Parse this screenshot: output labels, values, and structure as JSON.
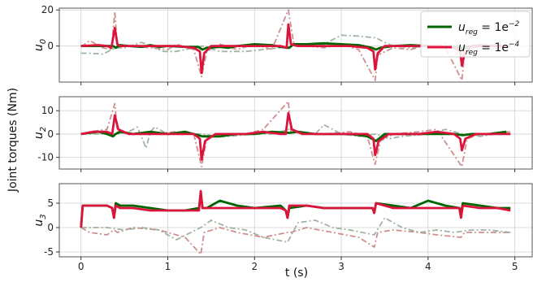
{
  "chart_data": {
    "type": "line",
    "ylabel": "Joint torques (Nm)",
    "xlabel": "t (s)",
    "xlim": [
      -0.25,
      5.2
    ],
    "xticks": [
      0,
      1,
      2,
      3,
      4,
      5
    ],
    "legend": {
      "placement": "top-right of first subplot",
      "entries": [
        {
          "label_parts": [
            "u",
            "reg",
            " = 1e",
            "−2"
          ],
          "color": "#006400"
        },
        {
          "label_parts": [
            "u",
            "reg",
            " = 1e",
            "−4"
          ],
          "color": "#dc143c"
        }
      ]
    },
    "panels": [
      {
        "ylabel": {
          "base": "u",
          "sub": "0"
        },
        "ylim": [
          -20,
          21
        ],
        "yticks": [
          0,
          20
        ],
        "series": [
          {
            "role": "u_reg_1e-2",
            "color": "#006400",
            "style": "solid",
            "x": [
              0,
              0.3,
              0.37,
              0.4,
              0.45,
              0.55,
              0.7,
              0.8,
              0.9,
              1.0,
              1.2,
              1.35,
              1.4,
              1.45,
              1.6,
              1.7,
              1.8,
              2.0,
              2.2,
              2.3,
              2.37,
              2.4,
              2.45,
              2.6,
              2.8,
              3.0,
              3.2,
              3.35,
              3.4,
              3.45,
              3.6,
              3.8,
              4.0,
              4.2,
              4.35,
              4.4,
              4.45,
              4.6,
              4.8,
              4.95
            ],
            "y": [
              0,
              0,
              0,
              -1,
              0.5,
              0,
              -0.5,
              0.5,
              -0.5,
              0,
              -0.5,
              -0.5,
              -2,
              -1,
              -0.5,
              -1,
              0,
              1,
              0.5,
              -0.5,
              -1,
              -1,
              1,
              1,
              1.5,
              1,
              0.5,
              -1,
              -2,
              -1,
              0,
              0.5,
              0,
              -0.5,
              -0.5,
              -1.5,
              -0.5,
              0.5,
              0,
              0
            ]
          },
          {
            "role": "u_reg_1e-4",
            "color": "#dc143c",
            "style": "solid",
            "x": [
              0,
              0.2,
              0.3,
              0.35,
              0.39,
              0.42,
              0.45,
              0.55,
              0.7,
              0.9,
              1.1,
              1.3,
              1.37,
              1.39,
              1.42,
              1.5,
              1.7,
              1.9,
              2.1,
              2.3,
              2.37,
              2.39,
              2.42,
              2.5,
              2.7,
              2.9,
              3.1,
              3.3,
              3.37,
              3.39,
              3.42,
              3.5,
              3.7,
              3.9,
              4.1,
              4.3,
              4.37,
              4.39,
              4.42,
              4.5,
              4.7,
              4.95
            ],
            "y": [
              0,
              0.5,
              0,
              -1,
              10,
              1,
              0,
              0,
              0,
              0,
              0,
              -1,
              -3,
              -15,
              -4,
              0,
              0,
              0,
              0,
              0,
              -1,
              12,
              1,
              0,
              0,
              0,
              0,
              -1,
              -3,
              -13,
              -4,
              0,
              0,
              0,
              0,
              -1,
              -3,
              -11,
              -4,
              0,
              0,
              0
            ]
          },
          {
            "role": "reference-a",
            "color": "#c87a7a",
            "style": "dashdot",
            "x": [
              0,
              0.1,
              0.25,
              0.35,
              0.39,
              0.42,
              0.5,
              0.8,
              1.0,
              1.1,
              1.3,
              1.39,
              1.45,
              1.6,
              1.8,
              2.0,
              2.2,
              2.39,
              2.45,
              2.6,
              2.8,
              3.0,
              3.2,
              3.39,
              3.42,
              3.6,
              3.8,
              4.0,
              4.2,
              4.39,
              4.42,
              4.6,
              4.8,
              4.95
            ],
            "y": [
              -0.5,
              3,
              -1,
              -2,
              19,
              -1,
              0,
              -1,
              -2,
              1,
              -2,
              -17,
              -3,
              1,
              -2,
              1,
              -2,
              20,
              2,
              0,
              -1,
              1,
              -2,
              -19,
              -5,
              -1,
              -2,
              1,
              -1,
              -19,
              -4,
              1,
              -1,
              0
            ]
          },
          {
            "role": "reference-b",
            "color": "#8fa88f",
            "style": "dashdot",
            "x": [
              0,
              0.1,
              0.25,
              0.4,
              0.5,
              0.7,
              0.8,
              0.95,
              1.1,
              1.4,
              1.6,
              1.9,
              2.1,
              2.3,
              2.5,
              2.8,
              3.0,
              3.2,
              3.4,
              3.5,
              3.6,
              3.8,
              4.0,
              4.2,
              4.4,
              4.6,
              4.8,
              4.95
            ],
            "y": [
              -4,
              -4,
              -4.5,
              -1,
              -1,
              2,
              0,
              -3,
              -3,
              0,
              -3,
              -3,
              -2,
              -1,
              0,
              1,
              6,
              5.5,
              4.5,
              2,
              0,
              -1,
              0,
              1,
              0,
              -1,
              0,
              0
            ]
          }
        ]
      },
      {
        "ylabel": {
          "base": "u",
          "sub": "2"
        },
        "ylim": [
          -15,
          16
        ],
        "yticks": [
          -10,
          0,
          10
        ],
        "series": [
          {
            "role": "u_reg_1e-2",
            "color": "#006400",
            "style": "solid",
            "x": [
              0,
              0.2,
              0.3,
              0.37,
              0.4,
              0.45,
              0.6,
              0.8,
              1.0,
              1.2,
              1.4,
              1.5,
              1.6,
              1.8,
              2.0,
              2.2,
              2.4,
              2.5,
              2.7,
              2.9,
              3.1,
              3.3,
              3.4,
              3.5,
              3.7,
              3.9,
              4.1,
              4.3,
              4.4,
              4.5,
              4.7,
              4.9
            ],
            "y": [
              0,
              1,
              0,
              -1,
              0,
              1,
              0,
              1,
              0,
              1,
              -1,
              -1,
              -1,
              0,
              0,
              1,
              0.5,
              1,
              0,
              0,
              0,
              -1,
              -3,
              0,
              0,
              0,
              0,
              0,
              -0.5,
              0,
              0,
              1
            ]
          },
          {
            "role": "u_reg_1e-4",
            "color": "#dc143c",
            "style": "solid",
            "x": [
              0,
              0.15,
              0.3,
              0.36,
              0.39,
              0.43,
              0.55,
              0.7,
              0.9,
              1.1,
              1.3,
              1.37,
              1.39,
              1.43,
              1.55,
              1.7,
              1.9,
              2.1,
              2.3,
              2.36,
              2.39,
              2.43,
              2.55,
              2.7,
              2.9,
              3.1,
              3.3,
              3.37,
              3.39,
              3.43,
              3.55,
              3.7,
              3.9,
              4.1,
              4.3,
              4.37,
              4.39,
              4.43,
              4.55,
              4.7,
              4.95
            ],
            "y": [
              0,
              1,
              1,
              0,
              8,
              2,
              0,
              0,
              0,
              0,
              0,
              -2,
              -11,
              -3,
              0,
              0,
              0,
              1,
              0,
              0,
              9,
              2,
              0,
              0,
              0,
              0,
              0,
              -2,
              -9,
              -3,
              0,
              0,
              0,
              1,
              0,
              -2,
              -7,
              -2,
              0,
              0,
              0
            ]
          },
          {
            "role": "reference-a",
            "color": "#c87a7a",
            "style": "dashdot",
            "x": [
              0,
              0.1,
              0.3,
              0.39,
              0.42,
              0.6,
              0.8,
              1.1,
              1.3,
              1.39,
              1.45,
              1.6,
              1.9,
              2.1,
              2.39,
              2.42,
              2.6,
              2.8,
              3.1,
              3.3,
              3.39,
              3.45,
              3.6,
              3.9,
              4.1,
              4.39,
              4.45,
              4.6,
              4.95
            ],
            "y": [
              0,
              1,
              2,
              13,
              1,
              0,
              0,
              1,
              0,
              -14,
              -2,
              0,
              0,
              2,
              14,
              1,
              0,
              0,
              1,
              -1,
              -13,
              -3,
              0,
              1,
              2,
              -14,
              -2,
              0,
              1
            ]
          },
          {
            "role": "reference-b",
            "color": "#8fa88f",
            "style": "dashdot",
            "x": [
              0,
              0.2,
              0.4,
              0.55,
              0.65,
              0.75,
              0.8,
              0.85,
              1.0,
              1.2,
              1.4,
              1.55,
              1.7,
              2.0,
              2.2,
              2.4,
              2.55,
              2.7,
              2.8,
              3.0,
              3.2,
              3.4,
              3.55,
              3.7,
              4.0,
              4.2,
              4.4,
              4.6,
              4.95
            ],
            "y": [
              0,
              0,
              0,
              1,
              3,
              -6,
              1,
              3,
              0,
              0,
              0,
              -1,
              -1,
              0,
              0,
              2,
              1,
              0,
              4,
              0,
              -1,
              0,
              -2,
              -1,
              0,
              2,
              0,
              -1,
              1
            ]
          }
        ]
      },
      {
        "ylabel": {
          "base": "u",
          "sub": "3"
        },
        "ylim": [
          -6,
          9
        ],
        "yticks": [
          -5,
          0,
          5
        ],
        "series": [
          {
            "role": "u_reg_1e-2",
            "color": "#006400",
            "style": "solid",
            "x": [
              0,
              0.02,
              0.3,
              0.36,
              0.38,
              0.4,
              0.45,
              0.6,
              0.8,
              1.0,
              1.2,
              1.36,
              1.38,
              1.4,
              1.45,
              1.6,
              1.8,
              2.0,
              2.3,
              2.36,
              2.38,
              2.4,
              2.6,
              2.8,
              3.0,
              3.2,
              3.36,
              3.38,
              3.4,
              3.6,
              3.8,
              4.0,
              4.2,
              4.36,
              4.38,
              4.4,
              4.6,
              4.8,
              4.95
            ],
            "y": [
              0,
              4.5,
              4.5,
              4,
              2,
              5,
              4.5,
              4.5,
              4,
              3.5,
              3.5,
              4,
              7,
              4,
              4,
              5.5,
              4.5,
              4,
              4.5,
              3.5,
              2,
              4,
              4.5,
              4,
              4,
              4,
              4,
              3,
              5,
              4.5,
              4,
              5.5,
              4.5,
              4,
              3,
              5,
              4.5,
              4,
              4
            ]
          },
          {
            "role": "u_reg_1e-4",
            "color": "#dc143c",
            "style": "solid",
            "x": [
              0,
              0.02,
              0.3,
              0.36,
              0.38,
              0.4,
              0.45,
              0.6,
              0.8,
              1.0,
              1.2,
              1.36,
              1.38,
              1.4,
              1.45,
              1.6,
              1.8,
              2.0,
              2.3,
              2.36,
              2.38,
              2.4,
              2.6,
              2.8,
              3.0,
              3.2,
              3.36,
              3.38,
              3.4,
              3.6,
              3.8,
              4.0,
              4.2,
              4.36,
              4.38,
              4.4,
              4.6,
              4.8,
              4.95
            ],
            "y": [
              0,
              4.5,
              4.5,
              4,
              2,
              4.5,
              4,
              4,
              3.5,
              3.5,
              3.5,
              3.5,
              7.5,
              4,
              4,
              4,
              4,
              4,
              4,
              3.5,
              2,
              4.5,
              4.5,
              4,
              4,
              4,
              4,
              3,
              5,
              4,
              4,
              4,
              4,
              4,
              2,
              4.5,
              4,
              4,
              3.5
            ]
          },
          {
            "role": "reference-a",
            "color": "#c87a7a",
            "style": "dashdot",
            "x": [
              0,
              0.1,
              0.3,
              0.38,
              0.42,
              0.6,
              0.9,
              1.2,
              1.38,
              1.42,
              1.6,
              1.8,
              2.1,
              2.38,
              2.42,
              2.6,
              2.9,
              3.2,
              3.38,
              3.42,
              3.6,
              3.9,
              4.1,
              4.38,
              4.42,
              4.6,
              4.8,
              4.95
            ],
            "y": [
              0,
              -1,
              -1.5,
              -0.5,
              -1,
              0,
              -0.5,
              -2,
              -5.5,
              -1,
              0,
              -1,
              -2,
              -1,
              -1,
              0,
              -1,
              -2,
              -4,
              -1,
              -0.5,
              -1,
              -1.5,
              -2,
              -1,
              -1,
              -1,
              -1
            ]
          },
          {
            "role": "reference-b",
            "color": "#8fa88f",
            "style": "dashdot",
            "x": [
              0,
              0.3,
              0.5,
              0.7,
              0.9,
              1.1,
              1.38,
              1.5,
              1.7,
              1.9,
              2.1,
              2.38,
              2.5,
              2.7,
              2.9,
              3.1,
              3.38,
              3.5,
              3.7,
              3.9,
              4.1,
              4.3,
              4.5,
              4.7,
              4.95
            ],
            "y": [
              0,
              0,
              -0.5,
              0,
              -0.5,
              -2.5,
              0,
              1.5,
              0,
              -0.5,
              -2,
              -3,
              1,
              1.5,
              0,
              -0.5,
              -1.5,
              2,
              0,
              -1,
              -0.5,
              -1,
              -0.5,
              -0.5,
              -1
            ]
          }
        ]
      }
    ]
  }
}
